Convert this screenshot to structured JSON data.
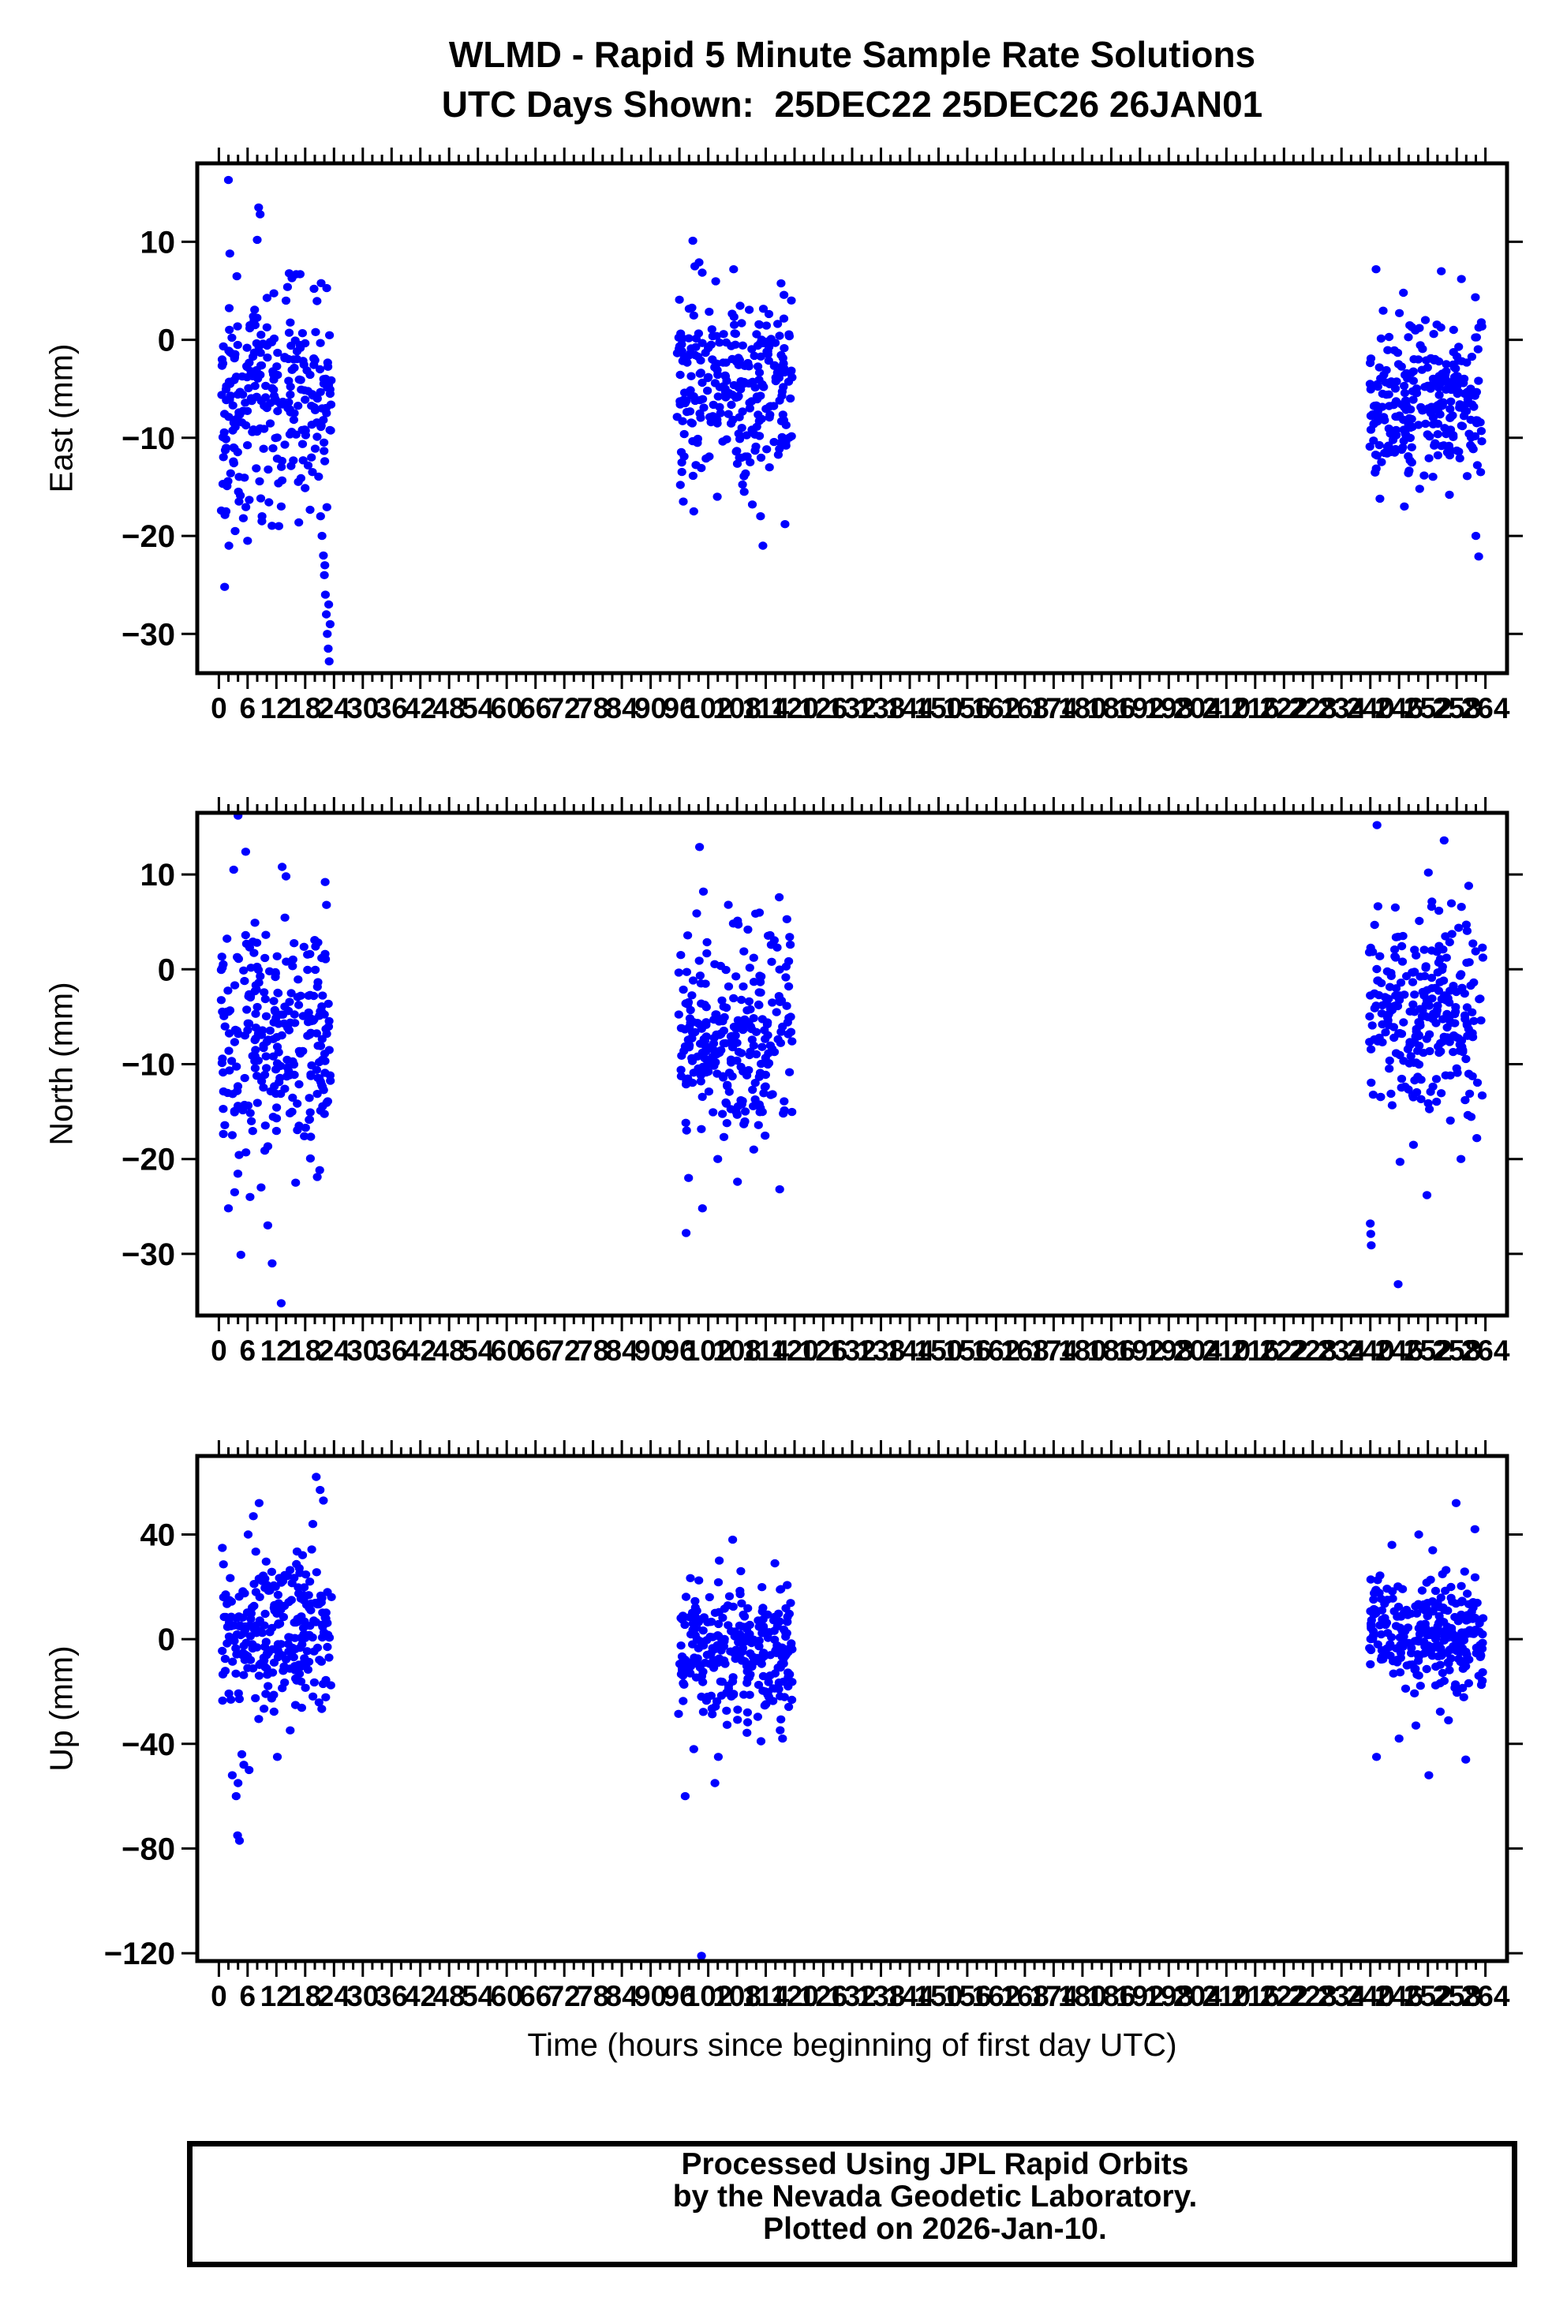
{
  "title": {
    "line1": "WLMD - Rapid 5 Minute Sample Rate Solutions",
    "line2": "UTC Days Shown:  25DEC22 25DEC26 26JAN01"
  },
  "xaxis": {
    "title": "Time (hours since beginning of first day UTC)",
    "min": -4.5,
    "max": 268.5,
    "major_step": 6,
    "minor_step": 2,
    "tick_labels": [
      0,
      6,
      12,
      18,
      24,
      30,
      36,
      42,
      48,
      54,
      60,
      66,
      72,
      78,
      84,
      90,
      96,
      102,
      108,
      114,
      120,
      126,
      132,
      138,
      144,
      150,
      156,
      162,
      168,
      174,
      180,
      186,
      192,
      198,
      204,
      210,
      216,
      222,
      228,
      234,
      240,
      246,
      252,
      258,
      264
    ]
  },
  "footer": {
    "lines": [
      "Processed Using JPL Rapid Orbits",
      "by the Nevada Geodetic Laboratory.",
      "Plotted on 2026-Jan-10."
    ]
  },
  "chart_data": {
    "type": "scatter",
    "title": "WLMD - Rapid 5 Minute Sample Rate Solutions",
    "subtitle": "UTC Days Shown:  25DEC22 25DEC26 26JAN01",
    "xlabel": "Time (hours since beginning of first day UTC)",
    "point_color": "#0000ff",
    "x_clusters_hours": [
      [
        0,
        24
      ],
      [
        96,
        120
      ],
      [
        240,
        264
      ]
    ],
    "panels": [
      {
        "name": "East",
        "ylabel": "East (mm)",
        "ylim": [
          -34,
          18
        ],
        "yticks": [
          10,
          0,
          -10,
          -20,
          -30
        ],
        "ytick_labels": [
          "10",
          "0",
          "−10",
          "−20",
          "−30"
        ],
        "clusters": [
          {
            "x0": 0.5,
            "x1": 23.5,
            "n": 265,
            "mean": -6,
            "sd": 5.5,
            "ymin": -19,
            "ymax": 8
          },
          {
            "x0": 95.5,
            "x1": 119.5,
            "n": 265,
            "mean": -4.5,
            "sd": 4.5,
            "ymin": -15,
            "ymax": 7
          },
          {
            "x0": 239.8,
            "x1": 263.5,
            "n": 265,
            "mean": -6,
            "sd": 4.3,
            "ymin": -14,
            "ymax": 5
          }
        ],
        "outliers": [
          [
            2.0,
            16.3
          ],
          [
            8.3,
            13.5
          ],
          [
            8.6,
            12.8
          ],
          [
            8.0,
            10.2
          ],
          [
            2.3,
            8.8
          ],
          [
            21.2,
            -18
          ],
          [
            21.5,
            -20
          ],
          [
            21.8,
            -22
          ],
          [
            22.0,
            -24
          ],
          [
            22.1,
            -23
          ],
          [
            22.2,
            -26
          ],
          [
            22.4,
            -28
          ],
          [
            22.6,
            -30
          ],
          [
            22.8,
            -31.5
          ],
          [
            22.9,
            -27
          ],
          [
            23.0,
            -32.8
          ],
          [
            23.2,
            -29
          ],
          [
            1.2,
            -25.2
          ],
          [
            2.1,
            -21
          ],
          [
            3.4,
            -19.5
          ],
          [
            6.0,
            -20.5
          ],
          [
            1.5,
            -17.5
          ],
          [
            9.0,
            -18
          ],
          [
            13.0,
            -17
          ],
          [
            12.5,
            -19
          ],
          [
            4.2,
            -16.5
          ],
          [
            5.1,
            -18.2
          ],
          [
            98.8,
            10.1
          ],
          [
            99.2,
            7.5
          ],
          [
            100.1,
            7.9
          ],
          [
            107.3,
            7.2
          ],
          [
            96.8,
            -16.5
          ],
          [
            99.0,
            -17.5
          ],
          [
            112.9,
            -18
          ],
          [
            113.4,
            -21
          ],
          [
            118.0,
            -18.8
          ],
          [
            103.9,
            -16
          ],
          [
            109.5,
            -15.5
          ],
          [
            96.2,
            -14.8
          ],
          [
            111.2,
            -16.8
          ],
          [
            241.2,
            7.2
          ],
          [
            254.8,
            7.0
          ],
          [
            259.0,
            6.2
          ],
          [
            246.9,
            4.8
          ],
          [
            242.0,
            -16.2
          ],
          [
            247.1,
            -17.0
          ],
          [
            256.5,
            -15.8
          ],
          [
            262.0,
            -20.0
          ],
          [
            262.6,
            -22.1
          ],
          [
            260.2,
            -13.9
          ],
          [
            250.3,
            -15.2
          ],
          [
            263.0,
            -13.5
          ]
        ]
      },
      {
        "name": "North",
        "ylabel": "North (mm)",
        "ylim": [
          -36.5,
          16.5
        ],
        "yticks": [
          10,
          0,
          -10,
          -20,
          -30
        ],
        "ytick_labels": [
          "10",
          "0",
          "−10",
          "−20",
          "−30"
        ],
        "clusters": [
          {
            "x0": 0.5,
            "x1": 23.5,
            "n": 265,
            "mean": -7,
            "sd": 6.5,
            "ymin": -22,
            "ymax": 10
          },
          {
            "x0": 95.8,
            "x1": 119.5,
            "n": 265,
            "mean": -7.5,
            "sd": 5.5,
            "ymin": -18,
            "ymax": 6
          },
          {
            "x0": 239.8,
            "x1": 263.5,
            "n": 265,
            "mean": -4.5,
            "sd": 5.5,
            "ymin": -16,
            "ymax": 8
          }
        ],
        "outliers": [
          [
            4.0,
            16.2
          ],
          [
            5.6,
            12.4
          ],
          [
            3.1,
            10.5
          ],
          [
            13.2,
            10.8
          ],
          [
            14.0,
            9.8
          ],
          [
            2.0,
            -25.2
          ],
          [
            10.2,
            -27.0
          ],
          [
            4.6,
            -30.1
          ],
          [
            11.1,
            -31.0
          ],
          [
            13.0,
            -35.2
          ],
          [
            6.5,
            -24.0
          ],
          [
            8.8,
            -23.0
          ],
          [
            16.0,
            -22.5
          ],
          [
            3.3,
            -23.5
          ],
          [
            100.2,
            12.9
          ],
          [
            101.0,
            8.2
          ],
          [
            116.8,
            7.6
          ],
          [
            99.6,
            5.9
          ],
          [
            106.2,
            6.8
          ],
          [
            97.9,
            -22.0
          ],
          [
            108.1,
            -22.4
          ],
          [
            100.8,
            -25.2
          ],
          [
            97.4,
            -27.8
          ],
          [
            116.9,
            -23.2
          ],
          [
            104.0,
            -20.0
          ],
          [
            111.5,
            -19.0
          ],
          [
            241.4,
            15.2
          ],
          [
            255.4,
            13.6
          ],
          [
            252.1,
            10.2
          ],
          [
            260.5,
            8.8
          ],
          [
            240.0,
            -26.8
          ],
          [
            240.1,
            -27.9
          ],
          [
            240.2,
            -29.1
          ],
          [
            245.8,
            -33.2
          ],
          [
            246.2,
            -20.3
          ],
          [
            258.9,
            -20.0
          ],
          [
            251.8,
            -23.8
          ],
          [
            249.0,
            -18.5
          ],
          [
            262.2,
            -17.8
          ]
        ]
      },
      {
        "name": "Up",
        "ylabel": "Up (mm)",
        "ylim": [
          -123,
          70
        ],
        "yticks": [
          40,
          0,
          -40,
          -80,
          -120
        ],
        "ytick_labels": [
          "40",
          "0",
          "−40",
          "−80",
          "−120"
        ],
        "clusters": [
          {
            "x0": 0.5,
            "x1": 23.5,
            "n": 265,
            "mean": 2,
            "sd": 15,
            "ymin": -42,
            "ymax": 36
          },
          {
            "x0": 95.8,
            "x1": 119.5,
            "n": 265,
            "mean": -5,
            "sd": 13,
            "ymin": -36,
            "ymax": 24
          },
          {
            "x0": 239.8,
            "x1": 263.5,
            "n": 265,
            "mean": 2,
            "sd": 12,
            "ymin": -28,
            "ymax": 30
          }
        ],
        "outliers": [
          [
            20.3,
            62
          ],
          [
            21.1,
            57
          ],
          [
            21.8,
            53
          ],
          [
            8.4,
            52
          ],
          [
            7.2,
            47
          ],
          [
            19.6,
            44
          ],
          [
            6.1,
            40
          ],
          [
            3.6,
            -60
          ],
          [
            3.9,
            -75
          ],
          [
            4.3,
            -77
          ],
          [
            4.0,
            -55
          ],
          [
            5.2,
            -48
          ],
          [
            6.3,
            -50
          ],
          [
            4.8,
            -44
          ],
          [
            12.2,
            -45
          ],
          [
            2.8,
            -52
          ],
          [
            107.1,
            38
          ],
          [
            104.3,
            30
          ],
          [
            115.9,
            29
          ],
          [
            108.8,
            26
          ],
          [
            104.1,
            -45
          ],
          [
            103.4,
            -55
          ],
          [
            97.2,
            -60
          ],
          [
            100.6,
            -121
          ],
          [
            99.0,
            -42
          ],
          [
            113.0,
            -39
          ],
          [
            117.5,
            -38
          ],
          [
            257.9,
            52
          ],
          [
            250.1,
            40
          ],
          [
            261.8,
            42
          ],
          [
            244.5,
            36
          ],
          [
            253.0,
            34
          ],
          [
            241.3,
            -45
          ],
          [
            252.2,
            -52
          ],
          [
            246.0,
            -38
          ],
          [
            249.5,
            -33
          ],
          [
            259.9,
            -46
          ],
          [
            256.3,
            -31
          ]
        ]
      }
    ]
  }
}
